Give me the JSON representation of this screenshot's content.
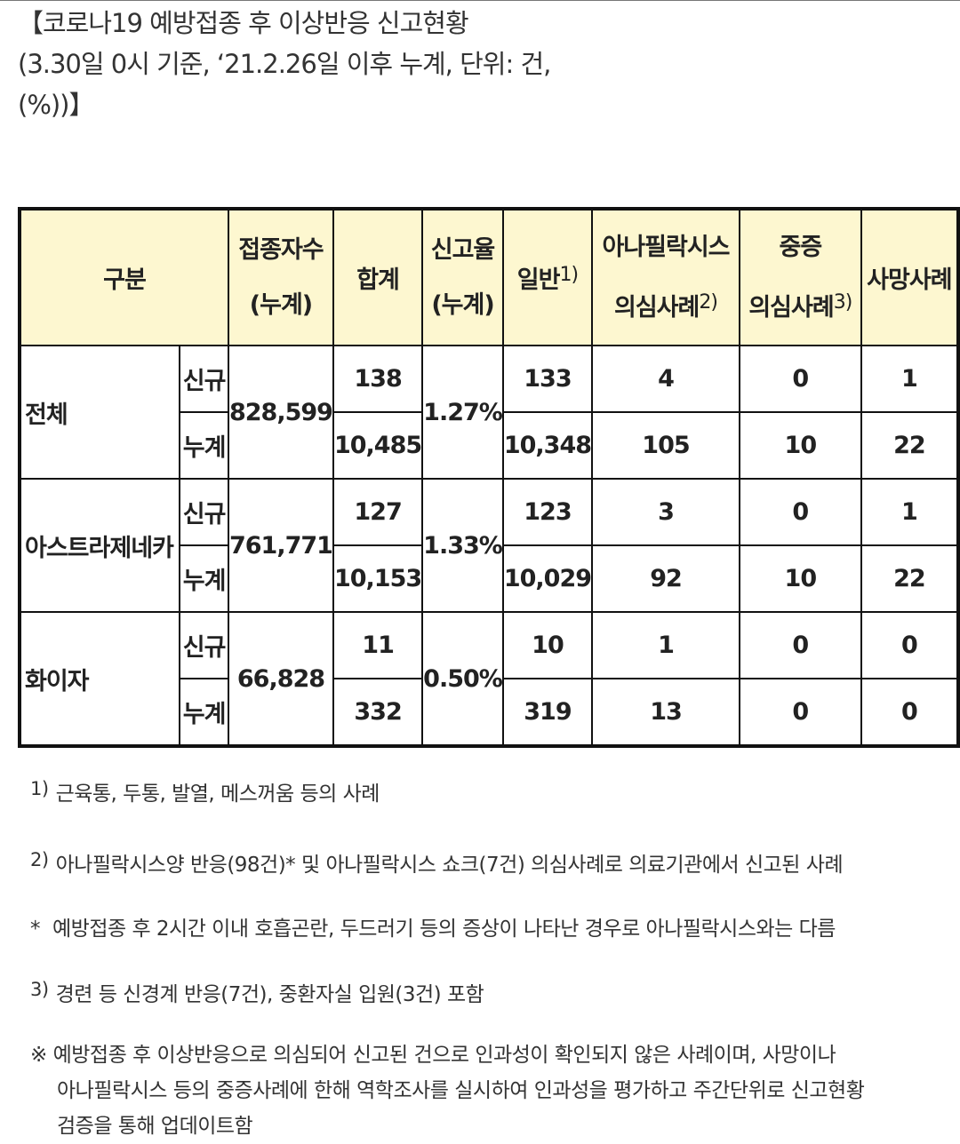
{
  "title": {
    "line1": "【코로나19 예방접종 후 이상반응 신고현황",
    "line2": "(3.30일 0시 기준, ‘21.2.26일 이후 누계, 단위: 건,",
    "line3": "(%))】"
  },
  "table": {
    "headers": {
      "gubun": "구분",
      "vaccinated_1": "접종자수",
      "vaccinated_2": "(누계)",
      "total": "합계",
      "rate_1": "신고율",
      "rate_2": "(누계)",
      "general": "일반",
      "general_sup": "1)",
      "anaphylaxis_1": "아나필락시스",
      "anaphylaxis_2": "의심사례",
      "anaphylaxis_sup": "2)",
      "severe_1": "중증",
      "severe_2": "의심사례",
      "severe_sup": "3)",
      "death": "사망사례"
    },
    "groups": [
      {
        "name": "전체",
        "vaccinated": "828,599",
        "rate": "1.27%",
        "rows": [
          {
            "type": "신규",
            "total": "138",
            "general": "133",
            "anaphylaxis": "4",
            "severe": "0",
            "death": "1"
          },
          {
            "type": "누계",
            "total": "10,485",
            "general": "10,348",
            "anaphylaxis": "105",
            "severe": "10",
            "death": "22"
          }
        ]
      },
      {
        "name": "아스트라제네카",
        "vaccinated": "761,771",
        "rate": "1.33%",
        "rows": [
          {
            "type": "신규",
            "total": "127",
            "general": "123",
            "anaphylaxis": "3",
            "severe": "0",
            "death": "1"
          },
          {
            "type": "누계",
            "total": "10,153",
            "general": "10,029",
            "anaphylaxis": "92",
            "severe": "10",
            "death": "22"
          }
        ]
      },
      {
        "name": "화이자",
        "vaccinated": "66,828",
        "rate": "0.50%",
        "rows": [
          {
            "type": "신규",
            "total": "11",
            "general": "10",
            "anaphylaxis": "1",
            "severe": "0",
            "death": "0"
          },
          {
            "type": "누계",
            "total": "332",
            "general": "319",
            "anaphylaxis": "13",
            "severe": "0",
            "death": "0"
          }
        ]
      }
    ]
  },
  "notes": {
    "n1_mark": "1)",
    "n1_text": "근육통, 두통, 발열, 메스꺼움 등의 사례",
    "n2_mark": "2)",
    "n2_text": "아나필락시스양 반응(98건)* 및 아나필락시스 쇼크(7건) 의심사례로 의료기관에서 신고된 사례",
    "star_mark": "*",
    "star_text": "예방접종 후 2시간 이내 호흡곤란, 두드러기 등의 증상이 나타난 경우로 아나필락시스와는 다름",
    "n3_mark": "3)",
    "n3_text": "경련 등 신경계 반응(7건), 중환자실 입원(3건) 포함",
    "ref_mark": "※",
    "ref_line1": "예방접종 후 이상반응으로 의심되어 신고된 건으로 인과성이 확인되지 않은 사례이며, 사망이나",
    "ref_line2": "아나필락시스 등의 중증사례에 한해 역학조사를 실시하여 인과성을 평가하고 주간단위로 신고현황",
    "ref_line3": "검증을 통해 업데이트함"
  }
}
